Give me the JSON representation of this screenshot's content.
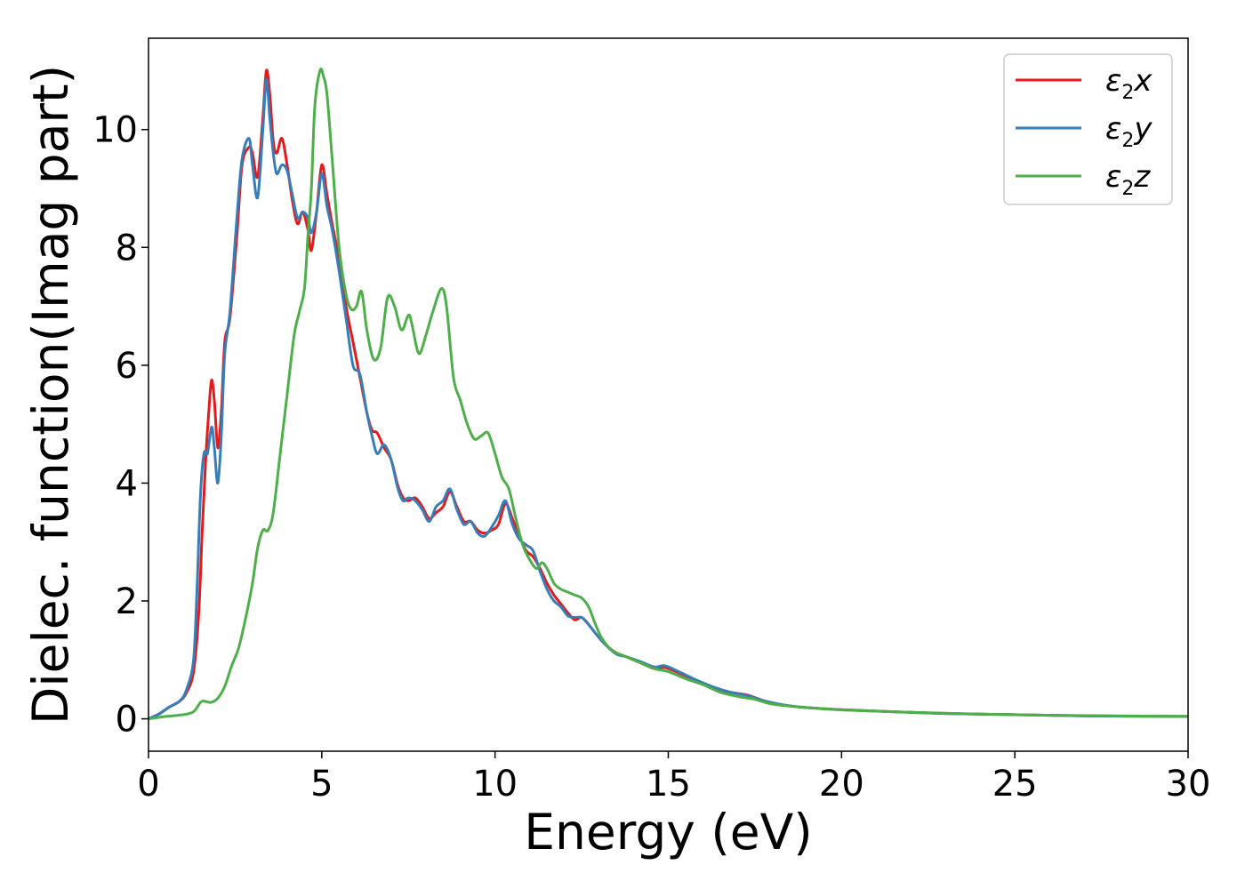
{
  "chart_data": {
    "type": "line",
    "title": "",
    "xlabel": "Energy (eV)",
    "ylabel": "Dielec. function(Imag part)",
    "xlim": [
      0,
      30
    ],
    "ylim": [
      -0.55,
      11.55
    ],
    "xticks": [
      0,
      5,
      10,
      15,
      20,
      25,
      30
    ],
    "xtick_labels": [
      "0",
      "5",
      "10",
      "15",
      "20",
      "25",
      "30"
    ],
    "yticks": [
      0,
      2,
      4,
      6,
      8,
      10
    ],
    "ytick_labels": [
      "0",
      "2",
      "4",
      "6",
      "8",
      "10"
    ],
    "grid": false,
    "legend_position": "top-right",
    "series": [
      {
        "name": "ε2x",
        "legend_base": "ε",
        "legend_sub": "2",
        "legend_tail": "x",
        "color": "#e41a1c",
        "points": [
          [
            0,
            0
          ],
          [
            0.3,
            0.08
          ],
          [
            0.6,
            0.2
          ],
          [
            0.9,
            0.3
          ],
          [
            1.1,
            0.45
          ],
          [
            1.3,
            0.8
          ],
          [
            1.45,
            1.8
          ],
          [
            1.55,
            3.2
          ],
          [
            1.65,
            4.4
          ],
          [
            1.75,
            5.3
          ],
          [
            1.82,
            5.75
          ],
          [
            1.9,
            5.4
          ],
          [
            2.0,
            4.6
          ],
          [
            2.1,
            5.2
          ],
          [
            2.2,
            6.4
          ],
          [
            2.35,
            6.8
          ],
          [
            2.55,
            8.2
          ],
          [
            2.7,
            9.4
          ],
          [
            2.9,
            9.7
          ],
          [
            3.0,
            9.6
          ],
          [
            3.15,
            9.2
          ],
          [
            3.3,
            10.2
          ],
          [
            3.4,
            11.0
          ],
          [
            3.5,
            10.6
          ],
          [
            3.6,
            9.8
          ],
          [
            3.7,
            9.6
          ],
          [
            3.85,
            9.85
          ],
          [
            4.0,
            9.4
          ],
          [
            4.15,
            8.8
          ],
          [
            4.3,
            8.4
          ],
          [
            4.45,
            8.6
          ],
          [
            4.6,
            8.3
          ],
          [
            4.7,
            7.95
          ],
          [
            4.85,
            8.6
          ],
          [
            5.0,
            9.4
          ],
          [
            5.15,
            8.9
          ],
          [
            5.3,
            8.4
          ],
          [
            5.5,
            7.8
          ],
          [
            5.7,
            7.0
          ],
          [
            5.9,
            6.4
          ],
          [
            6.1,
            5.8
          ],
          [
            6.3,
            5.2
          ],
          [
            6.45,
            4.9
          ],
          [
            6.6,
            4.85
          ],
          [
            6.8,
            4.6
          ],
          [
            7.0,
            4.4
          ],
          [
            7.2,
            3.95
          ],
          [
            7.35,
            3.75
          ],
          [
            7.5,
            3.7
          ],
          [
            7.7,
            3.75
          ],
          [
            7.9,
            3.6
          ],
          [
            8.1,
            3.4
          ],
          [
            8.3,
            3.5
          ],
          [
            8.5,
            3.6
          ],
          [
            8.7,
            3.85
          ],
          [
            8.9,
            3.6
          ],
          [
            9.1,
            3.35
          ],
          [
            9.3,
            3.35
          ],
          [
            9.5,
            3.2
          ],
          [
            9.7,
            3.15
          ],
          [
            9.9,
            3.2
          ],
          [
            10.1,
            3.3
          ],
          [
            10.3,
            3.65
          ],
          [
            10.5,
            3.4
          ],
          [
            10.7,
            3.1
          ],
          [
            10.9,
            2.85
          ],
          [
            11.1,
            2.75
          ],
          [
            11.3,
            2.55
          ],
          [
            11.5,
            2.3
          ],
          [
            11.7,
            2.1
          ],
          [
            11.9,
            1.95
          ],
          [
            12.1,
            1.8
          ],
          [
            12.3,
            1.68
          ],
          [
            12.5,
            1.72
          ],
          [
            12.7,
            1.6
          ],
          [
            12.9,
            1.45
          ],
          [
            13.2,
            1.25
          ],
          [
            13.5,
            1.12
          ],
          [
            13.8,
            1.05
          ],
          [
            14.2,
            0.95
          ],
          [
            14.6,
            0.85
          ],
          [
            14.9,
            0.87
          ],
          [
            15.3,
            0.78
          ],
          [
            15.8,
            0.65
          ],
          [
            16.3,
            0.52
          ],
          [
            16.8,
            0.45
          ],
          [
            17.3,
            0.4
          ],
          [
            17.8,
            0.3
          ],
          [
            18.5,
            0.22
          ],
          [
            19.5,
            0.17
          ],
          [
            21,
            0.13
          ],
          [
            23,
            0.09
          ],
          [
            25,
            0.07
          ],
          [
            27,
            0.05
          ],
          [
            30,
            0.04
          ]
        ]
      },
      {
        "name": "ε2y",
        "legend_base": "ε",
        "legend_sub": "2",
        "legend_tail": "y",
        "color": "#377eb8",
        "points": [
          [
            0,
            0
          ],
          [
            0.3,
            0.08
          ],
          [
            0.6,
            0.2
          ],
          [
            0.9,
            0.3
          ],
          [
            1.1,
            0.5
          ],
          [
            1.3,
            1.0
          ],
          [
            1.4,
            2.2
          ],
          [
            1.5,
            3.8
          ],
          [
            1.6,
            4.5
          ],
          [
            1.7,
            4.5
          ],
          [
            1.82,
            4.95
          ],
          [
            1.9,
            4.6
          ],
          [
            2.0,
            4.0
          ],
          [
            2.1,
            4.8
          ],
          [
            2.2,
            6.2
          ],
          [
            2.35,
            6.9
          ],
          [
            2.55,
            8.5
          ],
          [
            2.7,
            9.5
          ],
          [
            2.9,
            9.85
          ],
          [
            3.0,
            9.4
          ],
          [
            3.15,
            8.85
          ],
          [
            3.3,
            10.0
          ],
          [
            3.4,
            10.85
          ],
          [
            3.5,
            10.2
          ],
          [
            3.6,
            9.6
          ],
          [
            3.7,
            9.25
          ],
          [
            3.85,
            9.4
          ],
          [
            4.0,
            9.3
          ],
          [
            4.15,
            8.9
          ],
          [
            4.3,
            8.5
          ],
          [
            4.45,
            8.6
          ],
          [
            4.6,
            8.5
          ],
          [
            4.7,
            8.25
          ],
          [
            4.85,
            8.6
          ],
          [
            5.0,
            9.25
          ],
          [
            5.15,
            8.7
          ],
          [
            5.3,
            8.3
          ],
          [
            5.5,
            7.6
          ],
          [
            5.7,
            6.8
          ],
          [
            5.9,
            6.0
          ],
          [
            6.1,
            5.85
          ],
          [
            6.3,
            5.2
          ],
          [
            6.45,
            4.8
          ],
          [
            6.6,
            4.5
          ],
          [
            6.8,
            4.65
          ],
          [
            7.0,
            4.4
          ],
          [
            7.2,
            3.9
          ],
          [
            7.35,
            3.7
          ],
          [
            7.5,
            3.75
          ],
          [
            7.7,
            3.7
          ],
          [
            7.9,
            3.55
          ],
          [
            8.1,
            3.35
          ],
          [
            8.3,
            3.6
          ],
          [
            8.5,
            3.7
          ],
          [
            8.7,
            3.9
          ],
          [
            8.9,
            3.55
          ],
          [
            9.1,
            3.3
          ],
          [
            9.3,
            3.35
          ],
          [
            9.5,
            3.15
          ],
          [
            9.7,
            3.1
          ],
          [
            9.9,
            3.25
          ],
          [
            10.1,
            3.45
          ],
          [
            10.3,
            3.7
          ],
          [
            10.5,
            3.3
          ],
          [
            10.7,
            3.05
          ],
          [
            10.9,
            2.95
          ],
          [
            11.1,
            2.85
          ],
          [
            11.3,
            2.5
          ],
          [
            11.5,
            2.2
          ],
          [
            11.7,
            2.0
          ],
          [
            11.9,
            1.9
          ],
          [
            12.1,
            1.75
          ],
          [
            12.3,
            1.72
          ],
          [
            12.5,
            1.72
          ],
          [
            12.7,
            1.6
          ],
          [
            12.9,
            1.45
          ],
          [
            13.2,
            1.25
          ],
          [
            13.5,
            1.1
          ],
          [
            13.8,
            1.05
          ],
          [
            14.2,
            0.97
          ],
          [
            14.6,
            0.88
          ],
          [
            14.9,
            0.9
          ],
          [
            15.3,
            0.8
          ],
          [
            15.8,
            0.66
          ],
          [
            16.3,
            0.54
          ],
          [
            16.8,
            0.45
          ],
          [
            17.3,
            0.39
          ],
          [
            17.8,
            0.3
          ],
          [
            18.5,
            0.22
          ],
          [
            19.5,
            0.17
          ],
          [
            21,
            0.13
          ],
          [
            23,
            0.09
          ],
          [
            25,
            0.07
          ],
          [
            27,
            0.05
          ],
          [
            30,
            0.04
          ]
        ]
      },
      {
        "name": "ε2z",
        "legend_base": "ε",
        "legend_sub": "2",
        "legend_tail": "z",
        "color": "#4daf4a",
        "points": [
          [
            0,
            0
          ],
          [
            0.5,
            0.04
          ],
          [
            1.0,
            0.07
          ],
          [
            1.3,
            0.12
          ],
          [
            1.5,
            0.28
          ],
          [
            1.6,
            0.3
          ],
          [
            1.8,
            0.28
          ],
          [
            2.0,
            0.35
          ],
          [
            2.2,
            0.55
          ],
          [
            2.4,
            0.9
          ],
          [
            2.6,
            1.2
          ],
          [
            2.8,
            1.7
          ],
          [
            3.0,
            2.3
          ],
          [
            3.15,
            2.9
          ],
          [
            3.3,
            3.2
          ],
          [
            3.45,
            3.2
          ],
          [
            3.6,
            3.5
          ],
          [
            3.8,
            4.5
          ],
          [
            4.0,
            5.5
          ],
          [
            4.2,
            6.5
          ],
          [
            4.35,
            6.9
          ],
          [
            4.5,
            7.3
          ],
          [
            4.6,
            8.2
          ],
          [
            4.7,
            9.0
          ],
          [
            4.8,
            10.4
          ],
          [
            4.95,
            11.0
          ],
          [
            5.05,
            10.9
          ],
          [
            5.15,
            10.6
          ],
          [
            5.3,
            9.5
          ],
          [
            5.5,
            8.0
          ],
          [
            5.7,
            7.2
          ],
          [
            5.85,
            6.95
          ],
          [
            6.0,
            7.0
          ],
          [
            6.15,
            7.25
          ],
          [
            6.3,
            6.6
          ],
          [
            6.5,
            6.1
          ],
          [
            6.7,
            6.3
          ],
          [
            6.9,
            7.15
          ],
          [
            7.1,
            7.0
          ],
          [
            7.3,
            6.6
          ],
          [
            7.5,
            6.85
          ],
          [
            7.6,
            6.7
          ],
          [
            7.8,
            6.2
          ],
          [
            8.0,
            6.5
          ],
          [
            8.2,
            6.9
          ],
          [
            8.45,
            7.3
          ],
          [
            8.6,
            7.0
          ],
          [
            8.8,
            5.8
          ],
          [
            9.0,
            5.4
          ],
          [
            9.2,
            5.0
          ],
          [
            9.4,
            4.75
          ],
          [
            9.6,
            4.8
          ],
          [
            9.8,
            4.85
          ],
          [
            10.0,
            4.5
          ],
          [
            10.2,
            4.1
          ],
          [
            10.4,
            3.9
          ],
          [
            10.6,
            3.4
          ],
          [
            10.8,
            2.95
          ],
          [
            11.0,
            2.7
          ],
          [
            11.2,
            2.55
          ],
          [
            11.35,
            2.65
          ],
          [
            11.5,
            2.55
          ],
          [
            11.7,
            2.3
          ],
          [
            11.9,
            2.2
          ],
          [
            12.1,
            2.15
          ],
          [
            12.3,
            2.1
          ],
          [
            12.5,
            2.05
          ],
          [
            12.7,
            1.9
          ],
          [
            12.9,
            1.6
          ],
          [
            13.1,
            1.35
          ],
          [
            13.4,
            1.15
          ],
          [
            13.8,
            1.05
          ],
          [
            14.2,
            0.95
          ],
          [
            14.6,
            0.85
          ],
          [
            15.0,
            0.8
          ],
          [
            15.5,
            0.68
          ],
          [
            16.0,
            0.58
          ],
          [
            16.5,
            0.45
          ],
          [
            17.0,
            0.38
          ],
          [
            17.5,
            0.33
          ],
          [
            18.0,
            0.25
          ],
          [
            19.0,
            0.19
          ],
          [
            20.0,
            0.15
          ],
          [
            22,
            0.11
          ],
          [
            24,
            0.08
          ],
          [
            26,
            0.06
          ],
          [
            28,
            0.05
          ],
          [
            30,
            0.04
          ]
        ]
      }
    ]
  }
}
